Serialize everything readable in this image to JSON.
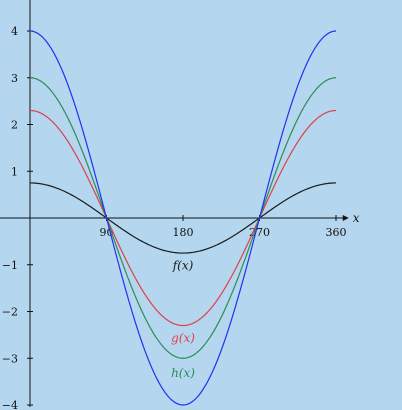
{
  "chart_data": {
    "type": "line",
    "title": "",
    "xlabel": "x",
    "ylabel": "",
    "xlim": [
      0,
      375
    ],
    "ylim": [
      -4,
      4.4
    ],
    "grid": false,
    "xticks": [
      90,
      180,
      270,
      360
    ],
    "xtick_labels": [
      "90",
      "180",
      "270",
      "360"
    ],
    "yticks": [
      4,
      3,
      2,
      1,
      -1,
      -2,
      -3,
      -4
    ],
    "ytick_labels": [
      "4",
      "3",
      "2",
      "1",
      "−1",
      "−2",
      "−3",
      "−4"
    ],
    "x_range": [
      0,
      360
    ],
    "series": [
      {
        "name": "f(x)",
        "function": "A*cos(x deg)",
        "amplitude": 0.75,
        "color": "#1a1a1a",
        "x": [
          0,
          90,
          180,
          270,
          360
        ],
        "y": [
          0.75,
          0,
          -0.75,
          0,
          0.75
        ],
        "label_at": [
          180,
          -1.1
        ]
      },
      {
        "name": "g(x)",
        "function": "A*cos(x deg)",
        "amplitude": 2.3,
        "color": "#e0404a",
        "x": [
          0,
          90,
          180,
          270,
          360
        ],
        "y": [
          2.3,
          0,
          -2.3,
          0,
          2.3
        ],
        "label_at": [
          180,
          -2.65
        ]
      },
      {
        "name": "h(x)",
        "function": "A*cos(x deg)",
        "amplitude": 3,
        "color": "#2e8b57",
        "x": [
          0,
          90,
          180,
          270,
          360
        ],
        "y": [
          3,
          0,
          -3,
          0,
          3
        ],
        "label_at": [
          180,
          -3.4
        ]
      },
      {
        "name": "",
        "function": "A*cos(x deg)",
        "amplitude": 4,
        "color": "#2233ee",
        "x": [
          0,
          90,
          180,
          270,
          360
        ],
        "y": [
          4,
          0,
          -4,
          0,
          4
        ]
      }
    ]
  }
}
